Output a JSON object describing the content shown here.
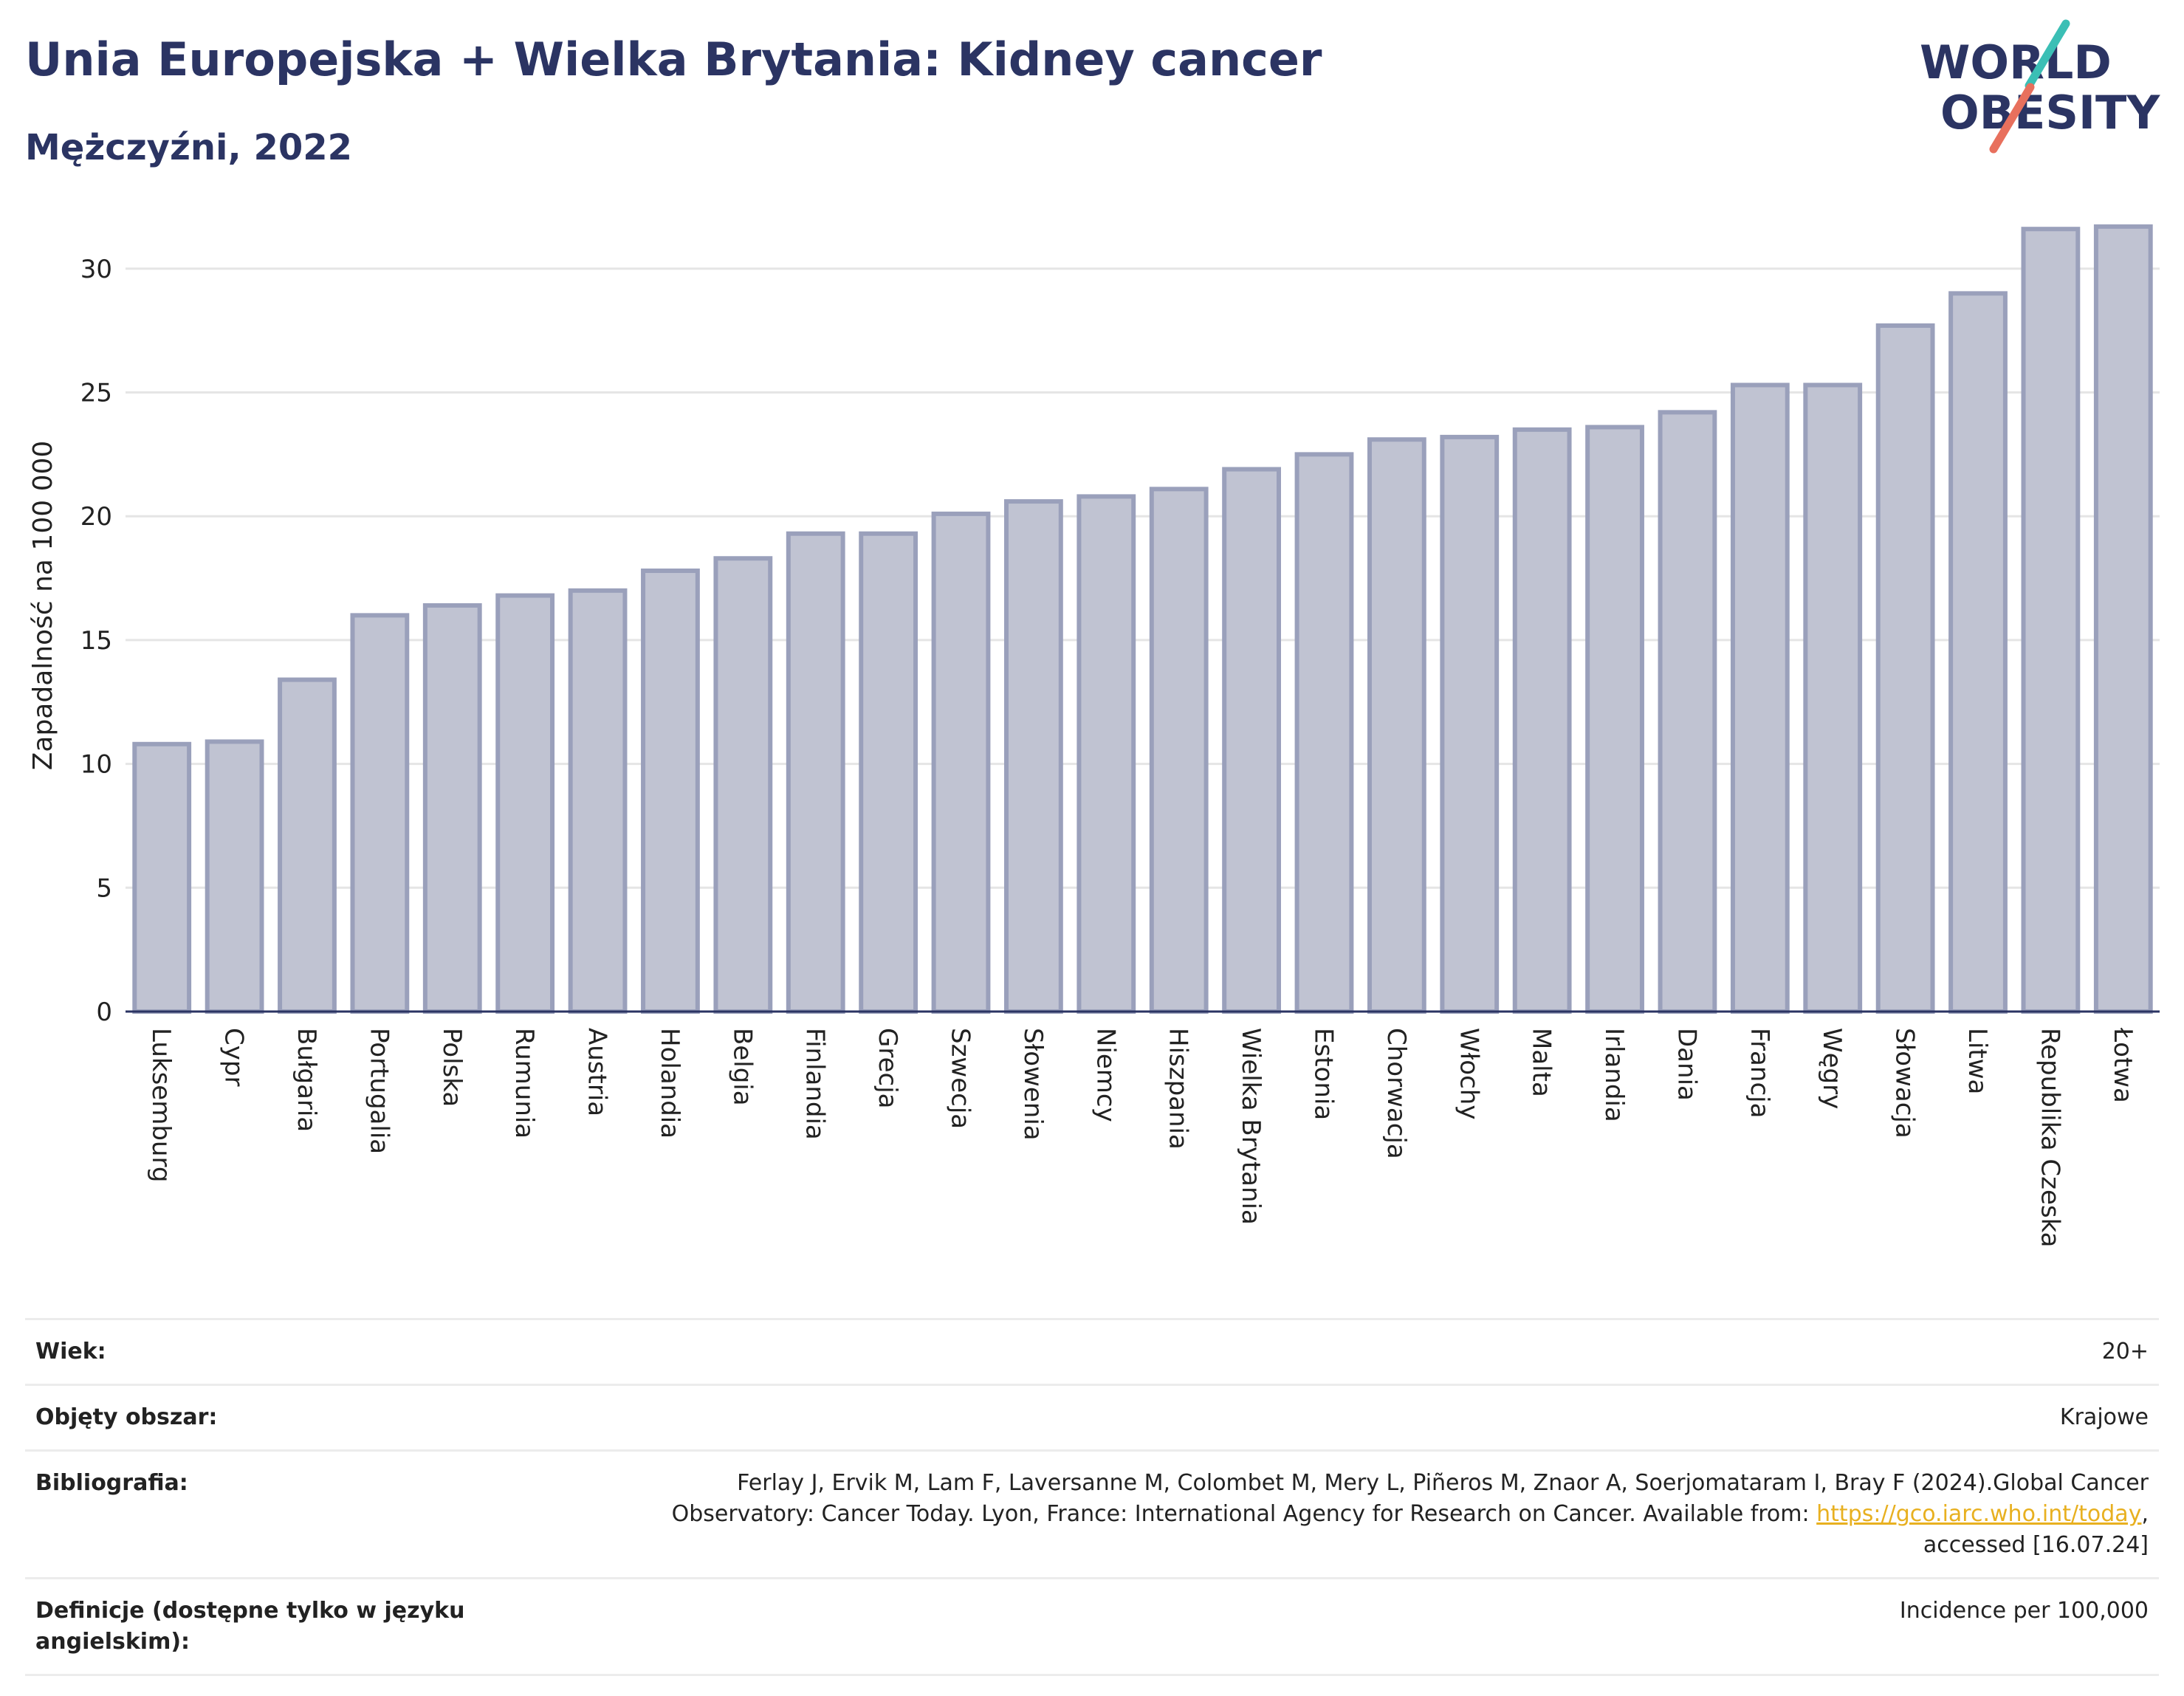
{
  "header": {
    "title": "Unia Europejska + Wielka Brytania: Kidney cancer",
    "subtitle": "Mężczyźni, 2022"
  },
  "logo": {
    "line1": "WORLD",
    "line2": "OBESITY"
  },
  "colors": {
    "title": "#2b3463",
    "bar_fill": "#c0c3d2",
    "bar_stroke": "#9aa0bb",
    "axis": "#2b3463",
    "grid": "#e5e5e5",
    "logo_teal": "#3bbfb5",
    "logo_red": "#e8705d",
    "link": "#e8b020"
  },
  "chart_data": {
    "type": "bar",
    "ylabel": "Zapadalność na 100 000",
    "ylim": [
      0,
      32.5
    ],
    "yticks": [
      0,
      5,
      10,
      15,
      20,
      25,
      30
    ],
    "grid": true,
    "categories": [
      "Luksemburg",
      "Cypr",
      "Bułgaria",
      "Portugalia",
      "Polska",
      "Rumunia",
      "Austria",
      "Holandia",
      "Belgia",
      "Finlandia",
      "Grecja",
      "Szwecja",
      "Słowenia",
      "Niemcy",
      "Hiszpania",
      "Wielka Brytania",
      "Estonia",
      "Chorwacja",
      "Włochy",
      "Malta",
      "Irlandia",
      "Dania",
      "Francja",
      "Węgry",
      "Słowacja",
      "Litwa",
      "Republika Czeska",
      "Łotwa"
    ],
    "values": [
      10.8,
      10.9,
      13.4,
      16.0,
      16.4,
      16.8,
      17.0,
      17.8,
      18.3,
      19.3,
      19.3,
      20.1,
      20.6,
      20.8,
      21.1,
      21.9,
      22.5,
      23.1,
      23.2,
      23.5,
      23.6,
      24.2,
      25.3,
      25.3,
      27.7,
      29.0,
      31.6,
      31.7
    ]
  },
  "meta": [
    {
      "label": "Wiek:",
      "value": "20+"
    },
    {
      "label": "Objęty obszar:",
      "value": "Krajowe"
    },
    {
      "label": "Bibliografia:",
      "value_before": "Ferlay J, Ervik M, Lam F, Laversanne M, Colombet M, Mery L, Piñeros M, Znaor A, Soerjomataram I, Bray F (2024).Global Cancer Observatory: Cancer Today. Lyon, France: International Agency for Research on Cancer. Available from: ",
      "link": "https://gco.iarc.who.int/today",
      "value_after": ", accessed [16.07.24]"
    },
    {
      "label": "Definicje (dostępne tylko w języku angielskim):",
      "value": "Incidence per 100,000"
    }
  ]
}
